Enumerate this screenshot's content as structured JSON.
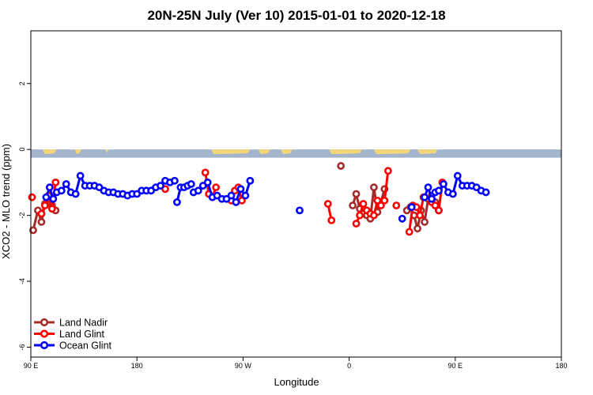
{
  "chart_data": {
    "type": "line",
    "title": "20N-25N July (Ver 10)   2015-01-01 to 2020-12-18",
    "xlabel": "Longitude",
    "ylabel": "XCO2 - MLO trend (ppm)",
    "xlim": [
      90,
      450
    ],
    "ylim": [
      -6.3,
      3.6
    ],
    "x_ticks": [
      {
        "value": 90,
        "label": "90 E"
      },
      {
        "value": 180,
        "label": "180"
      },
      {
        "value": 270,
        "label": "90 W"
      },
      {
        "value": 360,
        "label": "0"
      },
      {
        "value": 450,
        "label": "90 E"
      },
      {
        "value": 540,
        "label": "180"
      }
    ],
    "y_ticks": [
      {
        "value": 2,
        "label": "2"
      },
      {
        "value": 0,
        "label": "0"
      },
      {
        "value": -2,
        "label": "-2"
      },
      {
        "value": -4,
        "label": "-4"
      },
      {
        "value": -6,
        "label": "-6"
      }
    ],
    "x_domain": [
      90,
      540
    ],
    "legend_position": "bottom-left",
    "map_strip": {
      "ocean_color": "#A2B5CD",
      "land_color": "#F5D57A",
      "ymin": -0.25,
      "ymax": 0
    },
    "series": [
      {
        "name": "Land Nadir",
        "color": "#A52A2A",
        "segments": [
          [
            [
              92,
              -2.45
            ],
            [
              96,
              -1.85
            ],
            [
              99,
              -2.2
            ],
            [
              102,
              -1.65
            ],
            [
              105,
              -1.5
            ],
            [
              108,
              -1.7
            ],
            [
              111,
              -1.85
            ]
          ],
          [
            [
              353,
              -0.5
            ]
          ],
          [
            [
              363,
              -1.7
            ],
            [
              366,
              -1.35
            ],
            [
              369,
              -1.8
            ],
            [
              372,
              -1.95
            ],
            [
              375,
              -2.0
            ],
            [
              378,
              -2.1
            ],
            [
              381,
              -1.15
            ],
            [
              384,
              -1.9
            ],
            [
              387,
              -1.6
            ],
            [
              390,
              -1.2
            ]
          ],
          [
            [
              409,
              -1.85
            ],
            [
              412,
              -1.75
            ],
            [
              415,
              -2.0
            ],
            [
              418,
              -2.4
            ],
            [
              421,
              -1.85
            ],
            [
              424,
              -2.2
            ],
            [
              427,
              -1.5
            ],
            [
              430,
              -1.4
            ],
            [
              433,
              -1.6
            ],
            [
              436,
              -1.85
            ]
          ]
        ]
      },
      {
        "name": "Land Glint",
        "color": "#FF0000",
        "segments": [
          [
            [
              91,
              -1.45
            ]
          ],
          [
            [
              99,
              -1.95
            ],
            [
              102,
              -1.7
            ],
            [
              105,
              -1.4
            ],
            [
              108,
              -1.8
            ],
            [
              111,
              -1.0
            ]
          ],
          [
            [
              204,
              -1.2
            ]
          ],
          [
            [
              238,
              -0.7
            ],
            [
              241,
              -1.35
            ],
            [
              244,
              -1.45
            ],
            [
              247,
              -1.15
            ]
          ],
          [
            [
              260,
              -1.55
            ],
            [
              263,
              -1.25
            ],
            [
              266,
              -1.15
            ],
            [
              269,
              -1.55
            ]
          ],
          [
            [
              342,
              -1.65
            ],
            [
              345,
              -2.15
            ]
          ],
          [
            [
              366,
              -2.25
            ],
            [
              369,
              -2.0
            ],
            [
              372,
              -1.65
            ],
            [
              375,
              -1.85
            ],
            [
              378,
              -1.95
            ],
            [
              381,
              -2.0
            ],
            [
              384,
              -1.55
            ],
            [
              387,
              -1.7
            ],
            [
              390,
              -1.55
            ],
            [
              393,
              -0.65
            ]
          ],
          [
            [
              400,
              -1.7
            ]
          ],
          [
            [
              411,
              -2.5
            ],
            [
              414,
              -1.7
            ],
            [
              417,
              -1.75
            ],
            [
              420,
              -2.0
            ],
            [
              423,
              -1.45
            ]
          ],
          [
            [
              430,
              -1.6
            ],
            [
              433,
              -1.7
            ],
            [
              436,
              -1.85
            ],
            [
              439,
              -1.0
            ]
          ]
        ]
      },
      {
        "name": "Ocean Glint",
        "color": "#0000FF",
        "segments": [
          [
            [
              103,
              -1.45
            ],
            [
              106,
              -1.15
            ],
            [
              109,
              -1.5
            ],
            [
              112,
              -1.3
            ],
            [
              116,
              -1.25
            ],
            [
              120,
              -1.05
            ],
            [
              124,
              -1.3
            ],
            [
              128,
              -1.35
            ],
            [
              132,
              -0.8
            ],
            [
              136,
              -1.1
            ],
            [
              140,
              -1.1
            ],
            [
              144,
              -1.1
            ],
            [
              148,
              -1.15
            ],
            [
              152,
              -1.25
            ],
            [
              156,
              -1.3
            ],
            [
              160,
              -1.3
            ],
            [
              164,
              -1.35
            ],
            [
              168,
              -1.35
            ],
            [
              172,
              -1.4
            ],
            [
              176,
              -1.35
            ],
            [
              180,
              -1.35
            ],
            [
              184,
              -1.25
            ],
            [
              188,
              -1.25
            ],
            [
              192,
              -1.25
            ],
            [
              196,
              -1.15
            ],
            [
              200,
              -1.1
            ],
            [
              204,
              -0.95
            ],
            [
              208,
              -1.0
            ],
            [
              212,
              -0.95
            ]
          ],
          [
            [
              214,
              -1.6
            ],
            [
              217,
              -1.15
            ],
            [
              220,
              -1.15
            ],
            [
              223,
              -1.1
            ],
            [
              226,
              -1.05
            ]
          ],
          [
            [
              228,
              -1.3
            ],
            [
              232,
              -1.25
            ],
            [
              236,
              -1.1
            ],
            [
              240,
              -1.0
            ],
            [
              244,
              -1.45
            ],
            [
              248,
              -1.4
            ],
            [
              252,
              -1.5
            ],
            [
              256,
              -1.5
            ],
            [
              260,
              -1.4
            ],
            [
              264,
              -1.6
            ],
            [
              268,
              -1.2
            ],
            [
              272,
              -1.4
            ],
            [
              276,
              -0.95
            ]
          ],
          [
            [
              318,
              -1.85
            ]
          ],
          [
            [
              405,
              -2.1
            ]
          ],
          [
            [
              413,
              -1.75
            ]
          ],
          [
            [
              424,
              -1.45
            ],
            [
              427,
              -1.15
            ],
            [
              430,
              -1.5
            ],
            [
              433,
              -1.3
            ],
            [
              436,
              -1.25
            ],
            [
              440,
              -1.05
            ],
            [
              444,
              -1.3
            ],
            [
              448,
              -1.35
            ],
            [
              452,
              -0.8
            ],
            [
              456,
              -1.1
            ],
            [
              460,
              -1.1
            ],
            [
              464,
              -1.1
            ],
            [
              468,
              -1.15
            ],
            [
              472,
              -1.25
            ],
            [
              476,
              -1.3
            ]
          ]
        ]
      }
    ]
  }
}
